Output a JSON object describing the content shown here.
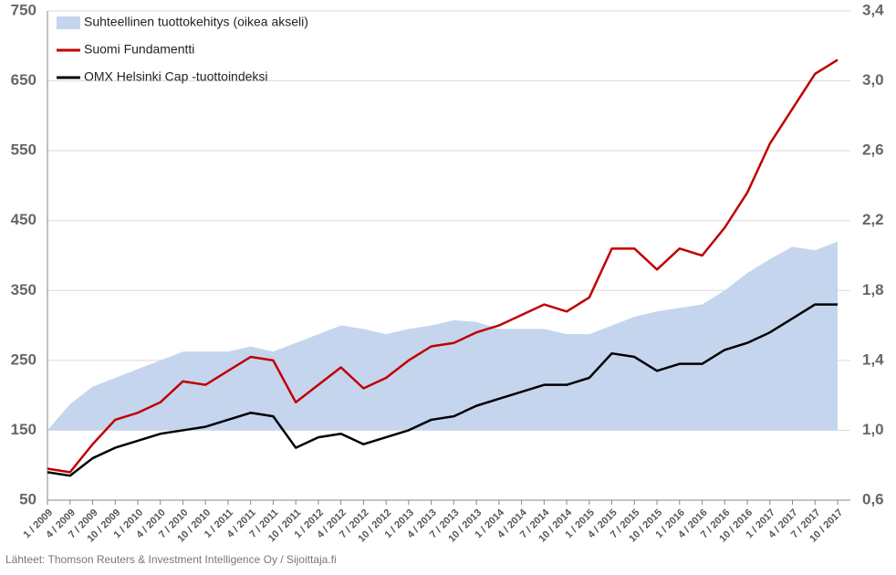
{
  "chart_data": {
    "type": "line",
    "source": "Lähteet: Thomson Reuters & Investment Intelligence Oy / Sijoittaja.fi",
    "categories": [
      "1 / 2009",
      "4 / 2009",
      "7 / 2009",
      "10 / 2009",
      "1 / 2010",
      "4 / 2010",
      "7 / 2010",
      "10 / 2010",
      "1 / 2011",
      "4 / 2011",
      "7 / 2011",
      "10 / 2011",
      "1 / 2012",
      "4 / 2012",
      "7 / 2012",
      "10 / 2012",
      "1 / 2013",
      "4 / 2013",
      "7 / 2013",
      "10 / 2013",
      "1 / 2014",
      "4 / 2014",
      "7 / 2014",
      "10 / 2014",
      "1 / 2015",
      "4 / 2015",
      "7 / 2015",
      "10 / 2015",
      "1 / 2016",
      "4 / 2016",
      "7 / 2016",
      "10 / 2016",
      "1 / 2017",
      "4 / 2017",
      "7 / 2017",
      "10 / 2017"
    ],
    "series": [
      {
        "name": "Suhteellinen tuottokehitys (oikea akseli)",
        "color": "#c5d5ee",
        "axis": "y2",
        "kind": "area",
        "values": [
          1.0,
          1.15,
          1.25,
          1.3,
          1.35,
          1.4,
          1.45,
          1.45,
          1.45,
          1.48,
          1.45,
          1.5,
          1.55,
          1.6,
          1.58,
          1.55,
          1.58,
          1.6,
          1.63,
          1.62,
          1.58,
          1.58,
          1.58,
          1.55,
          1.55,
          1.6,
          1.65,
          1.68,
          1.7,
          1.72,
          1.8,
          1.9,
          1.98,
          2.05,
          2.03,
          2.08
        ]
      },
      {
        "name": "Suomi Fundamentti",
        "color": "#c00000",
        "values": [
          95,
          90,
          130,
          165,
          175,
          190,
          220,
          215,
          235,
          255,
          250,
          190,
          215,
          240,
          210,
          225,
          250,
          270,
          275,
          290,
          300,
          315,
          330,
          320,
          340,
          410,
          410,
          380,
          410,
          400,
          440,
          490,
          560,
          610,
          660,
          680
        ]
      },
      {
        "name": "OMX Helsinki Cap -tuottoindeksi",
        "color": "#000000",
        "values": [
          90,
          85,
          110,
          125,
          135,
          145,
          150,
          155,
          165,
          175,
          170,
          125,
          140,
          145,
          130,
          140,
          150,
          165,
          170,
          185,
          195,
          205,
          215,
          215,
          225,
          260,
          255,
          235,
          245,
          245,
          265,
          275,
          290,
          310,
          330,
          330
        ]
      }
    ],
    "ylim": [
      50,
      750
    ],
    "yticks": [
      50,
      150,
      250,
      350,
      450,
      550,
      650,
      750
    ],
    "y2lim": [
      0.6,
      3.4
    ],
    "y2ticks": [
      {
        "value": 0.6,
        "label": "0,6"
      },
      {
        "value": 1.0,
        "label": "1,0"
      },
      {
        "value": 1.4,
        "label": "1,4"
      },
      {
        "value": 1.8,
        "label": "1,8"
      },
      {
        "value": 2.2,
        "label": "2,2"
      },
      {
        "value": 2.6,
        "label": "2,6"
      },
      {
        "value": 3.0,
        "label": "3,0"
      },
      {
        "value": 3.4,
        "label": "3,4"
      }
    ],
    "y2base": 1.0,
    "grid": true
  }
}
